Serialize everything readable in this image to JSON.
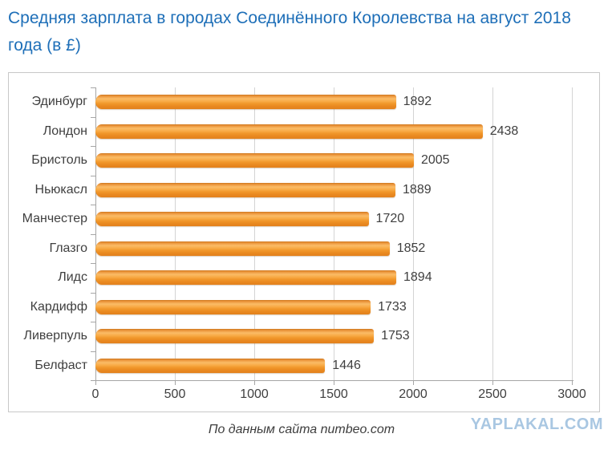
{
  "title_lines": [
    "Средняя зарплата в городах Соединённого Королевства на август 2018",
    "года (в £)"
  ],
  "caption": "По данным сайта numbeo.com",
  "watermark": "YAPLAKAL.COM",
  "colors": {
    "title_blue": "#1e6fb8",
    "bar_orange": "#f0982e",
    "bar_highlight": "#fbbc67",
    "label_gray": "#3f3f3f",
    "gridline_gray": "#d4d4d4",
    "watermark_blue": "#a9c7e2"
  },
  "chart_data": {
    "type": "bar",
    "orientation": "horizontal",
    "title": "Средняя зарплата в городах Соединённого Королевства на август 2018 года (в £)",
    "categories": [
      "Эдинбург",
      "Лондон",
      "Бристоль",
      "Ньюкасл",
      "Манчестер",
      "Глазго",
      "Лидс",
      "Кардифф",
      "Ливерпуль",
      "Белфаст"
    ],
    "values": [
      1892,
      2438,
      2005,
      1889,
      1720,
      1852,
      1894,
      1733,
      1753,
      1446
    ],
    "x_ticks": [
      0,
      500,
      1000,
      1500,
      2000,
      2500,
      3000
    ],
    "xlim": [
      0,
      3000
    ],
    "grid": true,
    "value_labels": true,
    "legend": false,
    "source": "По данным сайта numbeo.com"
  }
}
